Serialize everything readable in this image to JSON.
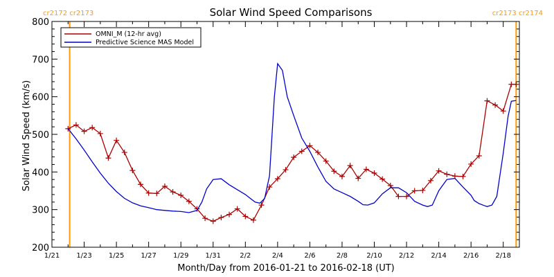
{
  "chart_data": {
    "type": "line",
    "title": "Solar Wind Speed Comparisons",
    "xlabel": "Month/Day from 2016-01-21 to 2016-02-18 (UT)",
    "ylabel": "Solar Wind Speed (km/s)",
    "xlim": [
      0,
      29
    ],
    "ylim": [
      200,
      800
    ],
    "yticks": [
      200,
      300,
      400,
      500,
      600,
      700,
      800
    ],
    "xticks": [
      {
        "x": 0,
        "label": "1/21"
      },
      {
        "x": 2,
        "label": "1/23"
      },
      {
        "x": 4,
        "label": "1/25"
      },
      {
        "x": 6,
        "label": "1/27"
      },
      {
        "x": 8,
        "label": "1/29"
      },
      {
        "x": 10,
        "label": "1/31"
      },
      {
        "x": 12,
        "label": "2/2"
      },
      {
        "x": 14,
        "label": "2/4"
      },
      {
        "x": 16,
        "label": "2/6"
      },
      {
        "x": 18,
        "label": "2/8"
      },
      {
        "x": 20,
        "label": "2/10"
      },
      {
        "x": 22,
        "label": "2/12"
      },
      {
        "x": 24,
        "label": "2/14"
      },
      {
        "x": 26,
        "label": "2/16"
      },
      {
        "x": 28,
        "label": "2/18"
      }
    ],
    "legend_position": "top-left",
    "markers": [
      {
        "x": 1.1,
        "label": "cr2172 cr2173",
        "color": "#ff9900",
        "label_side": "top-left"
      },
      {
        "x": 28.8,
        "label": "cr2173 cr2174",
        "color": "#ff9900",
        "label_side": "top-right"
      }
    ],
    "series": [
      {
        "name": "OMNI_M (12-hr avg)",
        "color": "#aa0000",
        "marker": "plus",
        "x": [
          1.0,
          1.5,
          2.0,
          2.5,
          3.0,
          3.5,
          4.0,
          4.5,
          5.0,
          5.5,
          6.0,
          6.5,
          7.0,
          7.5,
          8.0,
          8.5,
          9.0,
          9.5,
          10.0,
          10.5,
          11.0,
          11.5,
          12.0,
          12.5,
          13.0,
          13.5,
          14.0,
          14.5,
          15.0,
          15.5,
          16.0,
          16.5,
          17.0,
          17.5,
          18.0,
          18.5,
          19.0,
          19.5,
          20.0,
          20.5,
          21.0,
          21.5,
          22.0,
          22.5,
          23.0,
          23.5,
          24.0,
          24.5,
          25.0,
          25.5,
          26.0,
          26.5,
          27.0,
          27.5,
          28.0,
          28.5,
          28.8
        ],
        "values": [
          515,
          525,
          508,
          518,
          502,
          437,
          484,
          452,
          404,
          367,
          344,
          343,
          362,
          347,
          338,
          322,
          302,
          277,
          269,
          279,
          287,
          302,
          282,
          272,
          312,
          360,
          382,
          406,
          439,
          455,
          470,
          452,
          429,
          402,
          388,
          417,
          383,
          407,
          397,
          381,
          364,
          335,
          335,
          350,
          351,
          377,
          403,
          394,
          389,
          388,
          421,
          443,
          589,
          578,
          562,
          633,
          633
        ]
      },
      {
        "name": "Predictive Science MAS Model",
        "color": "#0000cc",
        "marker": "none",
        "x": [
          1.0,
          1.5,
          2.0,
          2.5,
          3.0,
          3.5,
          4.0,
          4.5,
          5.0,
          5.5,
          6.0,
          6.5,
          7.0,
          7.5,
          8.0,
          8.5,
          9.0,
          9.3,
          9.6,
          10.0,
          10.5,
          11.0,
          11.5,
          12.0,
          12.3,
          12.6,
          12.9,
          13.2,
          13.5,
          13.8,
          14.0,
          14.3,
          14.6,
          15.0,
          15.5,
          16.0,
          16.5,
          17.0,
          17.5,
          18.0,
          18.5,
          19.0,
          19.3,
          19.6,
          20.0,
          20.5,
          21.0,
          21.5,
          22.0,
          22.5,
          23.0,
          23.3,
          23.6,
          24.0,
          24.5,
          25.0,
          25.5,
          26.0,
          26.2,
          26.5,
          26.8,
          27.0,
          27.3,
          27.6,
          28.0,
          28.3,
          28.5,
          28.8
        ],
        "values": [
          515,
          488,
          458,
          427,
          397,
          370,
          348,
          330,
          318,
          310,
          305,
          300,
          298,
          296,
          295,
          292,
          298,
          320,
          355,
          380,
          382,
          366,
          353,
          340,
          330,
          320,
          317,
          330,
          390,
          600,
          688,
          670,
          600,
          550,
          490,
          455,
          413,
          375,
          355,
          345,
          335,
          322,
          313,
          312,
          318,
          342,
          358,
          358,
          345,
          322,
          312,
          308,
          312,
          350,
          380,
          383,
          360,
          338,
          324,
          316,
          311,
          308,
          312,
          335,
          450,
          548,
          588,
          590
        ]
      }
    ]
  }
}
